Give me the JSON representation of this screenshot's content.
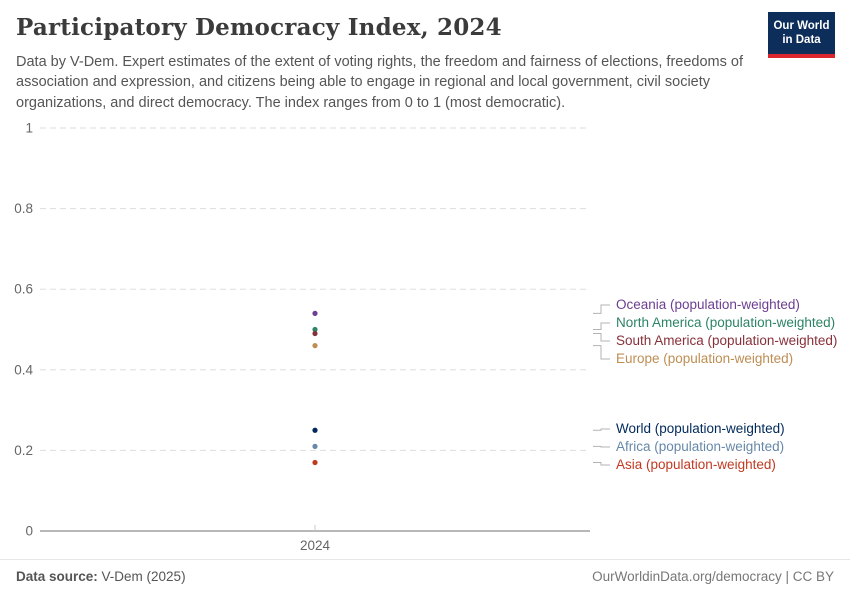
{
  "header": {
    "title": "Participatory Democracy Index, 2024",
    "subtitle": "Data by V-Dem. Expert estimates of the extent of voting rights, the freedom and fairness of elections, freedoms of association and expression, and citizens being able to engage in regional and local government, civil society organizations, and direct democracy. The index ranges from 0 to 1 (most democratic).",
    "logo": {
      "line1": "Our World",
      "line2": "in Data",
      "bg_color": "#0d2d5a",
      "accent_color": "#d9262e"
    }
  },
  "chart_data": {
    "type": "scatter",
    "x": [
      2024
    ],
    "ylim": [
      0,
      1
    ],
    "yticks": [
      0,
      0.2,
      0.4,
      0.6,
      0.8,
      1
    ],
    "grid": true,
    "legend_position": "right",
    "gridline_color": "#dddddd",
    "axis_color": "#a1a1a1",
    "tick_label_color": "#666666",
    "series": [
      {
        "name": "Oceania (population-weighted)",
        "group": "top",
        "value": 0.54,
        "color": "#6D3E91"
      },
      {
        "name": "North America (population-weighted)",
        "group": "top",
        "value": 0.5,
        "color": "#2C8465"
      },
      {
        "name": "South America (population-weighted)",
        "group": "top",
        "value": 0.49,
        "color": "#883039"
      },
      {
        "name": "Europe (population-weighted)",
        "group": "top",
        "value": 0.46,
        "color": "#BE8E54"
      },
      {
        "name": "World (population-weighted)",
        "group": "bottom",
        "value": 0.25,
        "color": "#00295B"
      },
      {
        "name": "Africa (population-weighted)",
        "group": "bottom",
        "value": 0.21,
        "color": "#6788A9"
      },
      {
        "name": "Asia (population-weighted)",
        "group": "bottom",
        "value": 0.17,
        "color": "#C03A21"
      }
    ]
  },
  "footer": {
    "source_label": "Data source:",
    "source_value": " V-Dem (2025)",
    "attribution": "OurWorldinData.org/democracy | CC BY"
  }
}
